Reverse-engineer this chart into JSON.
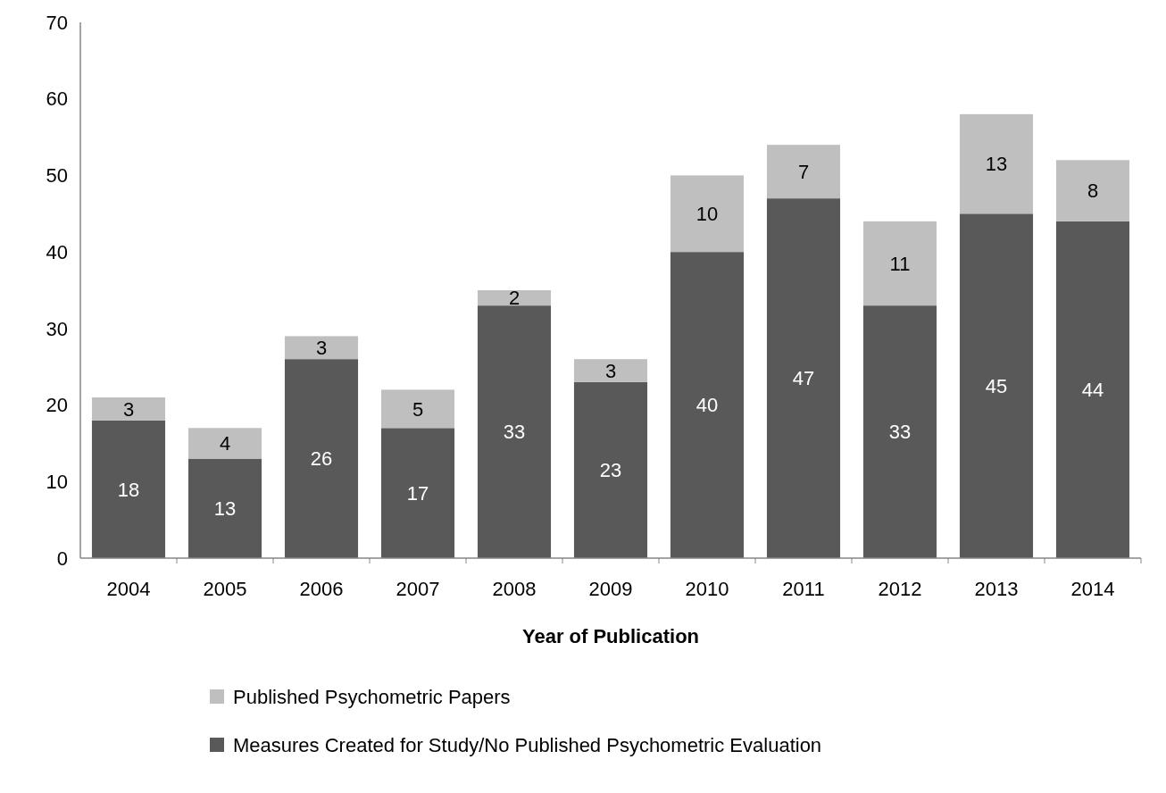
{
  "chart_data": {
    "type": "bar",
    "stacked": true,
    "xlabel": "Year of Publication",
    "categories": [
      "2004",
      "2005",
      "2006",
      "2007",
      "2008",
      "2009",
      "2010",
      "2011",
      "2012",
      "2013",
      "2014"
    ],
    "series": [
      {
        "name": "Measures Created for Study/No Published Psychometric Evaluation",
        "color": "#595959",
        "values": [
          18,
          13,
          26,
          17,
          33,
          23,
          40,
          47,
          33,
          45,
          44
        ]
      },
      {
        "name": "Published Psychometric Papers",
        "color": "#bfbfbf",
        "values": [
          3,
          4,
          3,
          5,
          2,
          3,
          10,
          7,
          11,
          13,
          8
        ]
      }
    ],
    "ylim": [
      0,
      70
    ],
    "yticks": [
      0,
      10,
      20,
      30,
      40,
      50,
      60,
      70
    ],
    "data_labels": true,
    "legend": "bottom",
    "grid": false
  }
}
